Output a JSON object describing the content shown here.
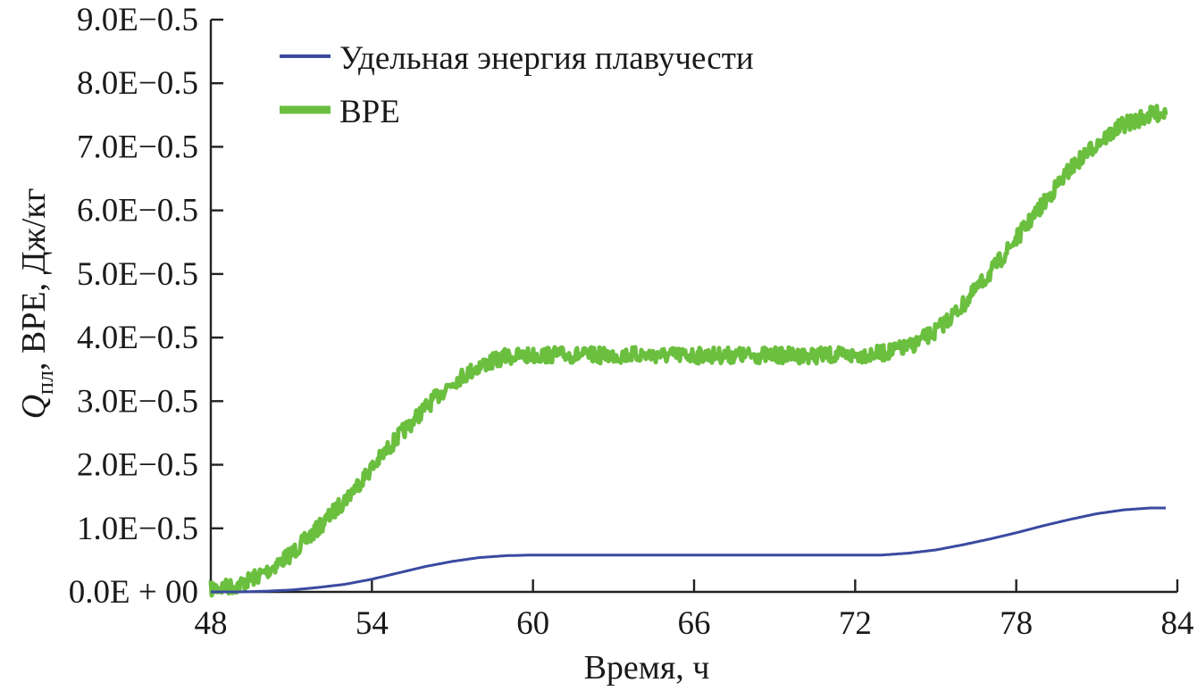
{
  "chart_data": {
    "type": "line",
    "title": "",
    "xlabel": "Время, ч",
    "ylabel_main": "Q",
    "ylabel_subscript": "пл",
    "ylabel_rest": ", BPE, Дж/кг",
    "xlim": [
      48,
      84
    ],
    "ylim": [
      0,
      9e-05
    ],
    "x_ticks": [
      48,
      54,
      60,
      66,
      72,
      78,
      84
    ],
    "x_tick_labels": [
      "48",
      "54",
      "60",
      "66",
      "72",
      "78",
      "84"
    ],
    "y_ticks": [
      0,
      1e-05,
      2e-05,
      3e-05,
      4e-05,
      5e-05,
      6e-05,
      7e-05,
      8e-05,
      9e-05
    ],
    "y_tick_labels": [
      "0.0E + 00",
      "1.0E−0.5",
      "2.0E−0.5",
      "3.0E−0.5",
      "4.0E−0.5",
      "5.0E−0.5",
      "6.0E−0.5",
      "7.0E−0.5",
      "8.0E−0.5",
      "9.0E−0.5"
    ],
    "grid": false,
    "legend_position": "top-left",
    "series": [
      {
        "name": "Удельная энергия плавучести",
        "color": "#3a4aa0",
        "noisy": false,
        "x": [
          48,
          49,
          50,
          51,
          52,
          53,
          54,
          55,
          56,
          57,
          58,
          59,
          60,
          62,
          64,
          66,
          68,
          70,
          72,
          73,
          74,
          75,
          76,
          77,
          78,
          79,
          80,
          81,
          82,
          83,
          83.6
        ],
        "y": [
          0,
          0,
          1e-07,
          3e-07,
          7e-07,
          1.2e-06,
          2e-06,
          3e-06,
          4e-06,
          4.8e-06,
          5.4e-06,
          5.7e-06,
          5.8e-06,
          5.8e-06,
          5.8e-06,
          5.8e-06,
          5.8e-06,
          5.8e-06,
          5.8e-06,
          5.8e-06,
          6.1e-06,
          6.6e-06,
          7.4e-06,
          8.3e-06,
          9.3e-06,
          1.04e-05,
          1.14e-05,
          1.23e-05,
          1.29e-05,
          1.32e-05,
          1.32e-05
        ]
      },
      {
        "name": "BPE",
        "color": "#6bbf3f",
        "noisy": true,
        "x": [
          48,
          49,
          50,
          51,
          52,
          53,
          54,
          55,
          56,
          57,
          58,
          59,
          60,
          61,
          62,
          63,
          64,
          65,
          66,
          67,
          68,
          69,
          70,
          71,
          72,
          73,
          74,
          75,
          76,
          77,
          78,
          79,
          80,
          81,
          82,
          83,
          83.6
        ],
        "y": [
          5e-07,
          1e-06,
          3e-06,
          6e-06,
          1e-05,
          1.45e-05,
          1.95e-05,
          2.45e-05,
          2.9e-05,
          3.3e-05,
          3.55e-05,
          3.7e-05,
          3.72e-05,
          3.73e-05,
          3.72e-05,
          3.72e-05,
          3.73e-05,
          3.72e-05,
          3.72e-05,
          3.72e-05,
          3.72e-05,
          3.72e-05,
          3.72e-05,
          3.72e-05,
          3.72e-05,
          3.75e-05,
          3.85e-05,
          4.1e-05,
          4.5e-05,
          5e-05,
          5.55e-05,
          6.1e-05,
          6.65e-05,
          7.05e-05,
          7.35e-05,
          7.5e-05,
          7.55e-05
        ]
      }
    ]
  }
}
